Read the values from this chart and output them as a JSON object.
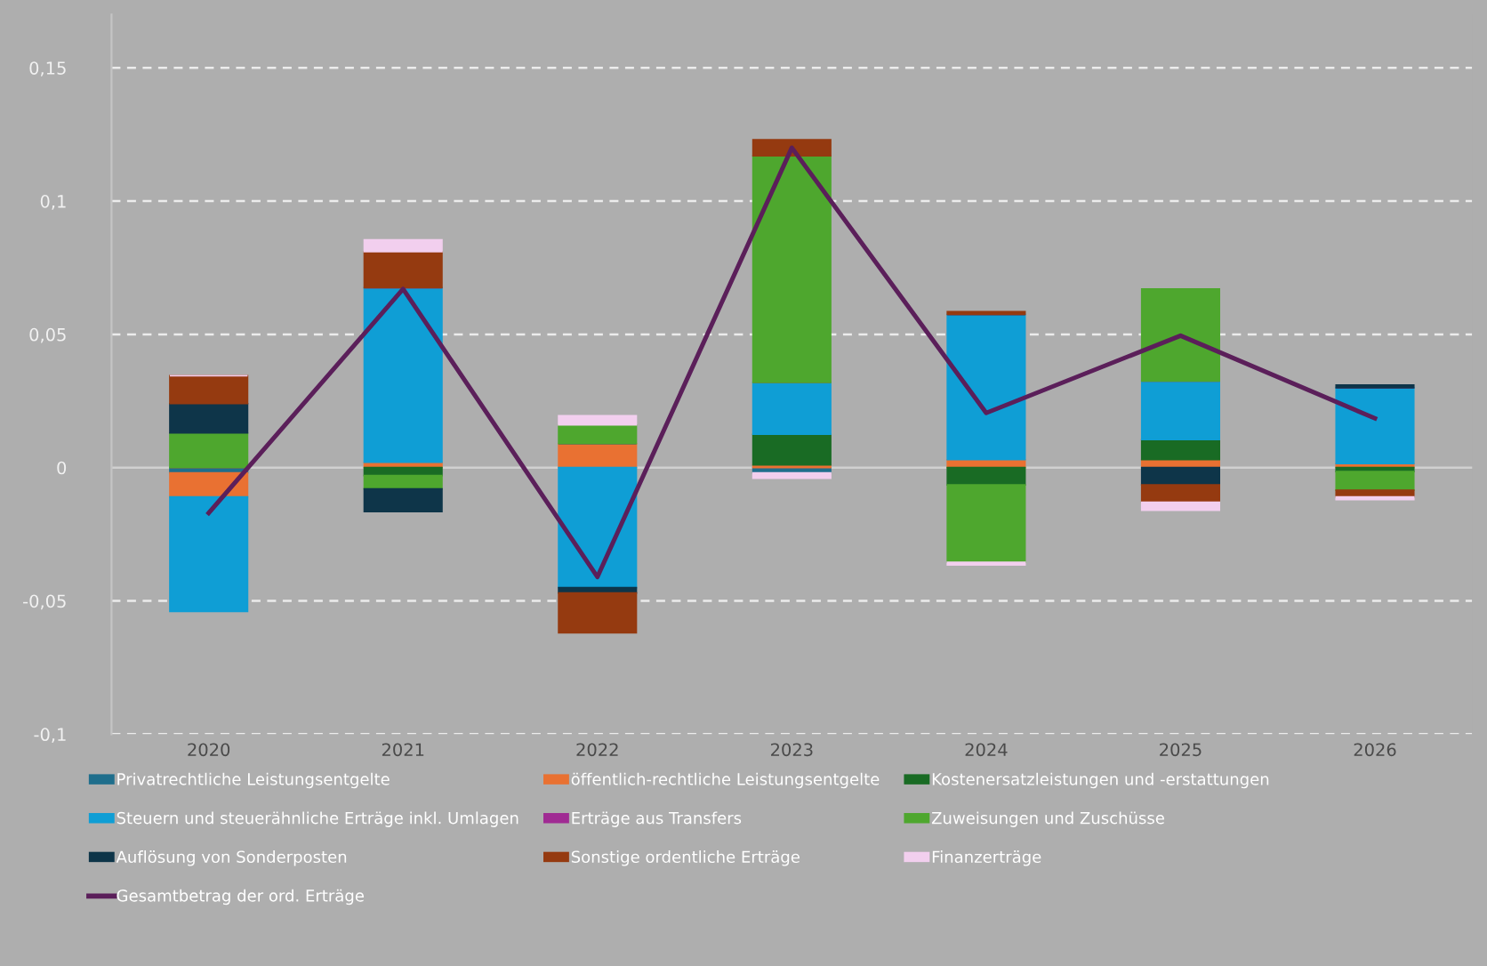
{
  "chart_data": {
    "type": "bar",
    "stacked": true,
    "categories": [
      "2020",
      "2021",
      "2022",
      "2023",
      "2024",
      "2025",
      "2026"
    ],
    "series": [
      {
        "name": "Privatrechtliche Leistungsentgelte",
        "color": "#1f6e8c",
        "values": [
          -0.002,
          0,
          0,
          -0.002,
          0,
          0,
          0
        ]
      },
      {
        "name": "öffentlich-rechtliche Leistungsentgelte",
        "color": "#e97132",
        "values": [
          -0.009,
          0.002,
          0.009,
          0.001,
          0.003,
          0.003,
          0.0015
        ]
      },
      {
        "name": "Kostenersatzleistungen und -erstattungen",
        "color": "#196b24",
        "values": [
          0,
          -0.003,
          0,
          0.0115,
          -0.0065,
          0.0075,
          -0.0015
        ]
      },
      {
        "name": "Steuern und steuerähnliche Erträge inkl. Umlagen",
        "color": "#0f9ed5",
        "values": [
          -0.043,
          0.0655,
          -0.045,
          0.0195,
          0.0545,
          0.022,
          0.0285
        ]
      },
      {
        "name": "Erträge aus Transfers",
        "color": "#a02b93",
        "values": [
          0,
          0,
          0,
          0,
          0,
          0,
          0
        ]
      },
      {
        "name": "Zuweisungen und Zuschüsse",
        "color": "#4ea72e",
        "values": [
          0.013,
          -0.005,
          0.007,
          0.085,
          -0.029,
          0.0345,
          -0.007
        ]
      },
      {
        "name": "Auflösung von Sonderposten",
        "color": "#0e3549",
        "values": [
          0.011,
          -0.0085,
          -0.002,
          0,
          0,
          -0.0065,
          0.001
        ]
      },
      {
        "name": "Sonstige ordentliche Erträge",
        "color": "#953a10",
        "values": [
          0.0105,
          0.0135,
          -0.015,
          0.006,
          0.001,
          -0.0065,
          -0.0025
        ]
      },
      {
        "name": "Finanzerträge",
        "color": "#f2cfee",
        "values": [
          0,
          0.0045,
          0.0035,
          -0.002,
          -0.001,
          -0.003,
          -0.001
        ]
      },
      {
        "name": "Gesamtbetrag der ord. Erträge",
        "type": "line",
        "color": "#5b1f5a",
        "values": [
          -0.017,
          0.067,
          -0.041,
          0.12,
          0.0205,
          0.0495,
          0.0185
        ]
      }
    ],
    "ylim": [
      -0.1,
      0.17
    ],
    "yticks": [
      {
        "value": -0.1,
        "label": "-0,1"
      },
      {
        "value": -0.05,
        "label": "-0,05"
      },
      0,
      {
        "value": 0.05,
        "label": "0,05"
      },
      {
        "value": 0.1,
        "label": "0,1"
      },
      {
        "value": 0.15,
        "label": "0,15"
      }
    ],
    "grid": "y",
    "legend": "bottom"
  }
}
